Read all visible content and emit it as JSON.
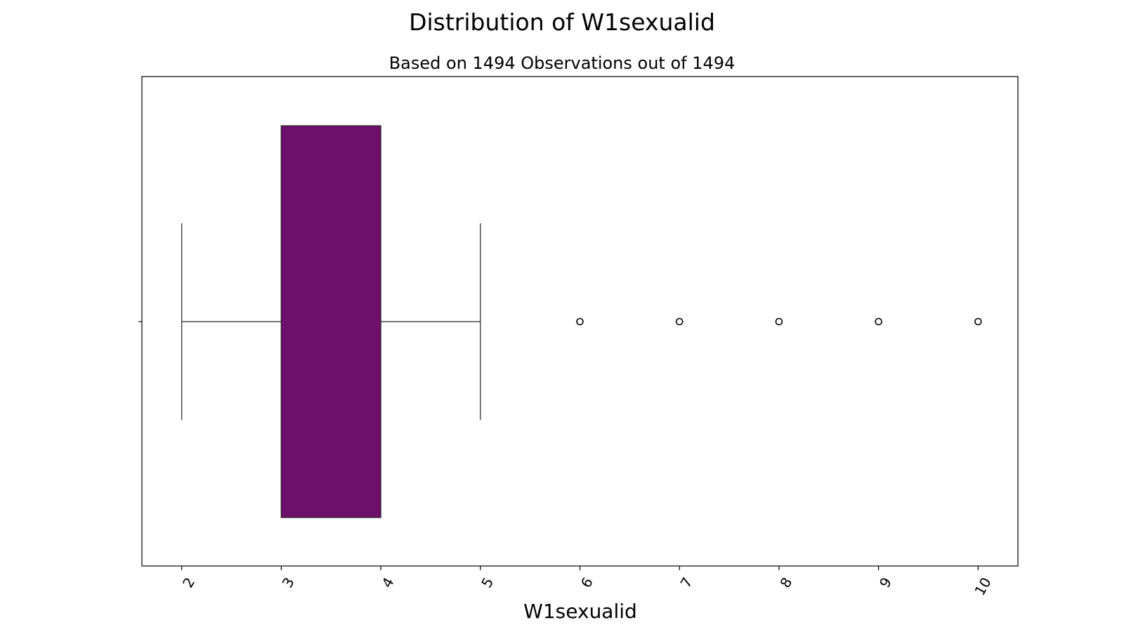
{
  "chart_data": {
    "type": "box",
    "title": "Distribution of W1sexualid",
    "subtitle": "Based on 1494 Observations out of 1494",
    "xlabel": "W1sexualid",
    "xlim": [
      1.6,
      10.4
    ],
    "xticks": [
      2,
      3,
      4,
      5,
      6,
      7,
      8,
      9,
      10
    ],
    "xtick_labels": [
      "2",
      "3",
      "4",
      "5",
      "6",
      "7",
      "8",
      "9",
      "10"
    ],
    "orientation": "horizontal",
    "box": {
      "whisker_low": 2,
      "q1": 3,
      "median": 3,
      "q3": 4,
      "whisker_high": 5
    },
    "outliers": [
      6,
      7,
      8,
      9,
      10
    ],
    "box_color": "#6e0f6b",
    "grid": false
  }
}
